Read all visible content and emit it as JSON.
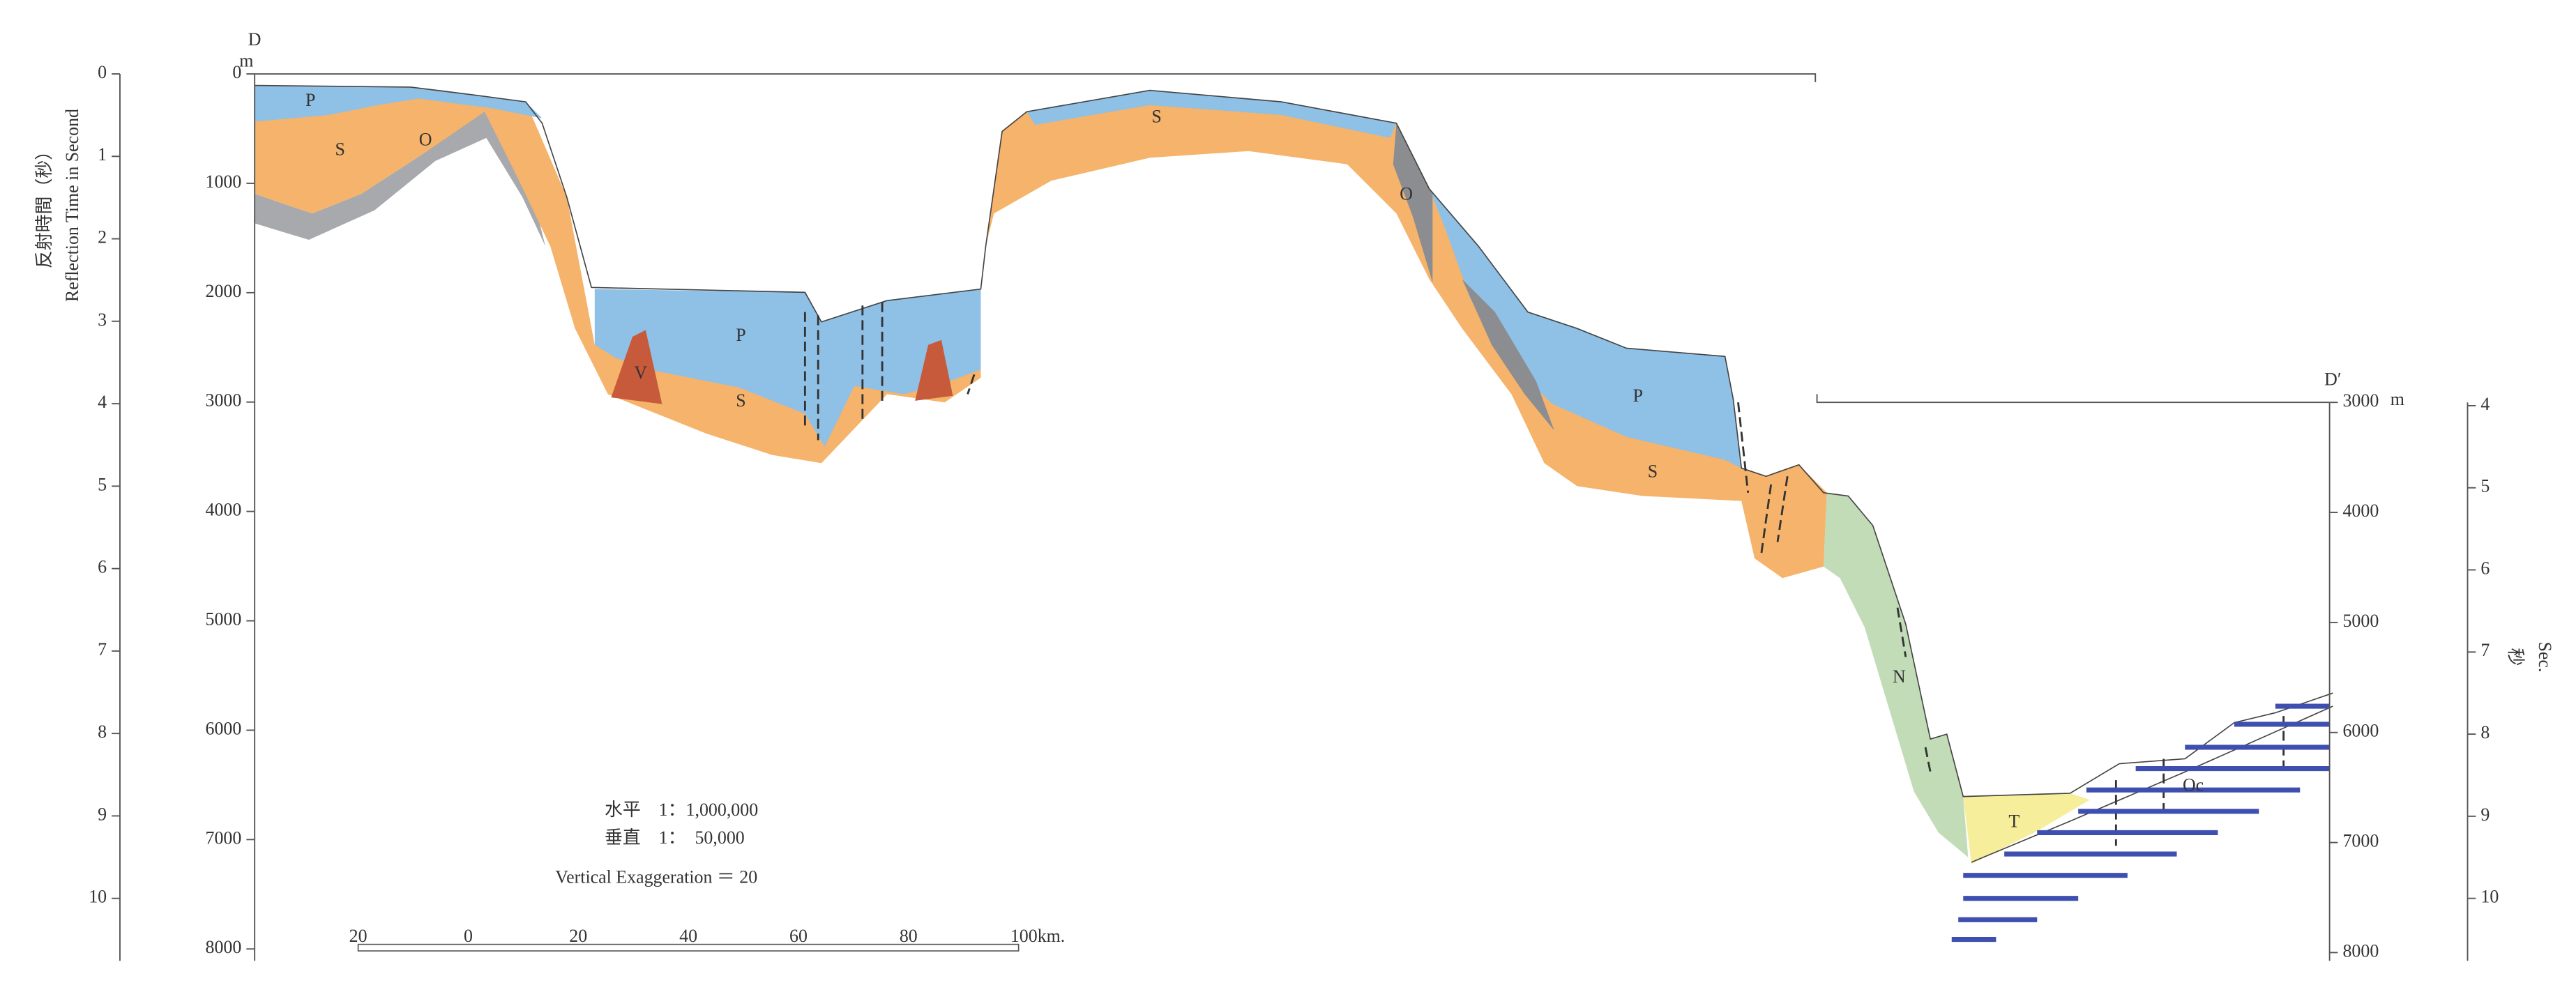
{
  "section": {
    "start": "D",
    "end": "D′"
  },
  "left_axis": {
    "title_ja": "反射時間（秒）",
    "title_en": "Reflection Time in Second",
    "seconds": [
      0,
      1,
      2,
      3,
      4,
      5,
      6,
      7,
      8,
      9,
      10
    ],
    "unit": "m",
    "meters": [
      0,
      1000,
      2000,
      3000,
      4000,
      5000,
      6000,
      7000,
      8000
    ]
  },
  "right_axis": {
    "unit": "m",
    "meters": [
      3000,
      4000,
      5000,
      6000,
      7000,
      8000
    ],
    "seconds": [
      4,
      5,
      6,
      7,
      8,
      9,
      10
    ],
    "title_ja": "秒",
    "title_en": "Sec."
  },
  "units": [
    {
      "label": "P"
    },
    {
      "label": "S"
    },
    {
      "label": "O"
    },
    {
      "label": "P"
    },
    {
      "label": "V"
    },
    {
      "label": "S"
    },
    {
      "label": "S"
    },
    {
      "label": "O"
    },
    {
      "label": "P"
    },
    {
      "label": "S"
    },
    {
      "label": "N"
    },
    {
      "label": "T"
    },
    {
      "label": "Oc"
    }
  ],
  "scale": {
    "horizontal": "水平　1：1,000,000",
    "vertical": "垂直　1：　50,000",
    "exaggeration": "Vertical Exaggeration ＝ 20",
    "bar_ticks": [
      20,
      0,
      20,
      40,
      60,
      80
    ],
    "bar_end": "100km."
  }
}
